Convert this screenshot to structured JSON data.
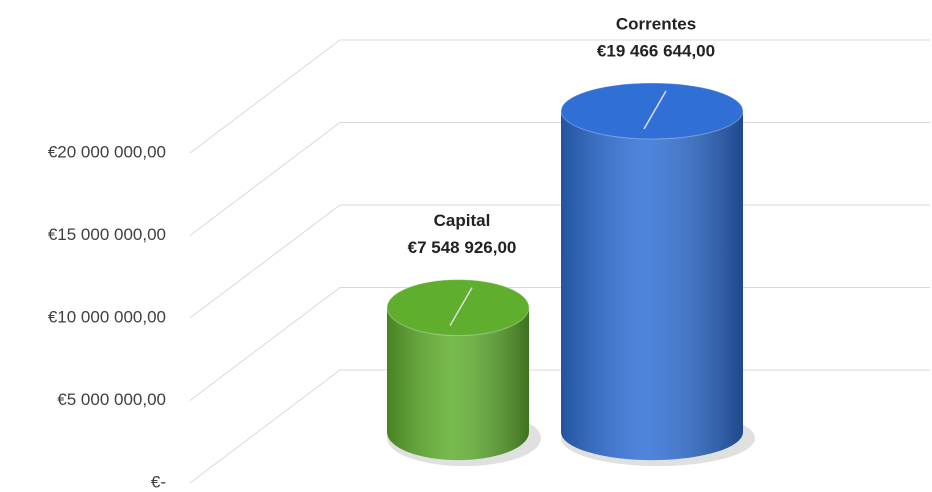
{
  "chart_data": {
    "type": "bar3d",
    "categories": [
      "Capital",
      "Correntes"
    ],
    "values": [
      7548926,
      19466644
    ],
    "value_labels": [
      "€7 548 926,00",
      "€19 466 644,00"
    ],
    "colors": [
      "#5fae2e",
      "#2f6fd6"
    ],
    "ylim": [
      0,
      20000000
    ],
    "yticks": [
      {
        "value": 0,
        "label": "€-"
      },
      {
        "value": 5000000,
        "label": "€5 000 000,00"
      },
      {
        "value": 10000000,
        "label": "€10 000 000,00"
      },
      {
        "value": 15000000,
        "label": "€15 000 000,00"
      },
      {
        "value": 20000000,
        "label": "€20 000 000,00"
      }
    ],
    "grid": true
  }
}
